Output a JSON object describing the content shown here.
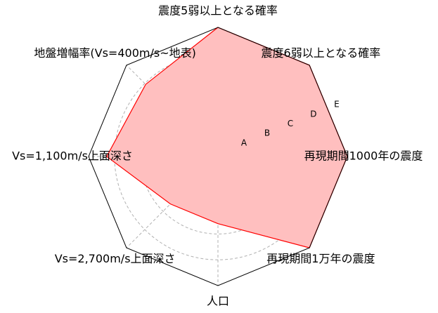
{
  "chart_data": {
    "type": "radar",
    "axes": [
      "震度5弱以上となる確率",
      "震度6弱以上となる確率",
      "再現期間1000年の震度",
      "再現期間1万年の震度",
      "人口",
      "Vs=2,700m/s上面深さ",
      "Vs=1,100m/s上面深さ",
      "地盤増幅率(Vs=400m/s~地表)"
    ],
    "ring_labels": [
      "A",
      "B",
      "C",
      "D",
      "E"
    ],
    "scale_max": 5,
    "grid": true,
    "series": [
      {
        "values": [
          5.0,
          5.0,
          5.0,
          5.0,
          2.6,
          2.6,
          4.3,
          3.95
        ],
        "color": "#ff0000",
        "fill": "#ffbfbf"
      }
    ]
  }
}
